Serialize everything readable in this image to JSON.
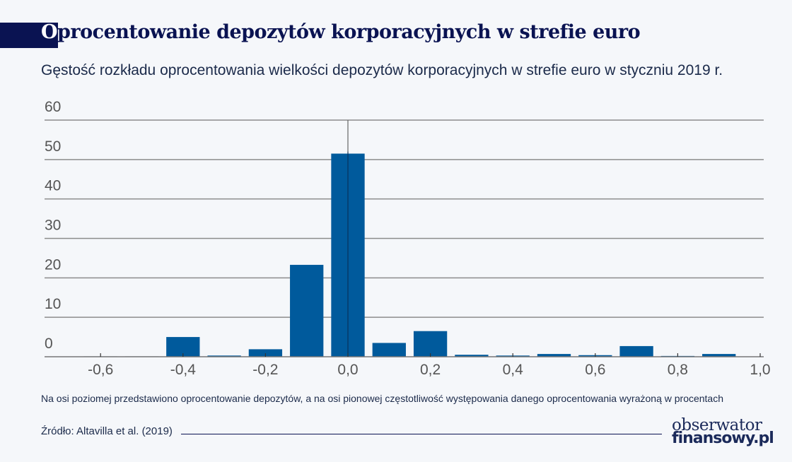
{
  "header": {
    "title_first_letter": "O",
    "title_rest": "procentowanie depozytów korporacyjnych w strefie euro",
    "subtitle": "Gęstość rozkładu oprocentowania wielkości depozytów korporacyjnych w strefie euro w styczniu 2019 r."
  },
  "footer": {
    "note": "Na osi poziomej przedstawiono oprocentowanie depozytów, a na osi pionowej częstotliwość występowania danego oprocentowania wyrażoną w procentach",
    "source": "Źródło: Altavilla et al. (2019)",
    "logo_line1": "obserwator",
    "logo_line2": "finansowy.pl"
  },
  "chart_data": {
    "type": "bar",
    "title": "",
    "xlabel": "",
    "ylabel": "",
    "x": [
      -0.6,
      -0.5,
      -0.4,
      -0.3,
      -0.2,
      -0.1,
      0.0,
      0.1,
      0.2,
      0.3,
      0.4,
      0.5,
      0.6,
      0.7,
      0.8,
      0.9
    ],
    "values": [
      0.1,
      0.1,
      5.0,
      0.3,
      1.9,
      23.3,
      51.5,
      3.5,
      6.5,
      0.5,
      0.3,
      0.7,
      0.4,
      2.7,
      0.2,
      0.7
    ],
    "bin_width": 0.1,
    "xlim": [
      -0.73,
      1.0
    ],
    "ylim": [
      0,
      60
    ],
    "xticks": [
      "-0,6",
      "-0,4",
      "-0,2",
      "0,0",
      "0,2",
      "0,4",
      "0,6",
      "0,8",
      "1,0"
    ],
    "xtick_values": [
      -0.6,
      -0.4,
      -0.2,
      0,
      0.2,
      0.4,
      0.6,
      0.8,
      1.0
    ],
    "yticks": [
      "0",
      "10",
      "20",
      "30",
      "40",
      "50",
      "60"
    ],
    "ytick_values": [
      0,
      10,
      20,
      30,
      40,
      50,
      60
    ],
    "grid": true,
    "legend": "none",
    "colors": {
      "bar": "#005a9c",
      "grid": "#8c8c8c",
      "title": "#0a1352"
    }
  }
}
